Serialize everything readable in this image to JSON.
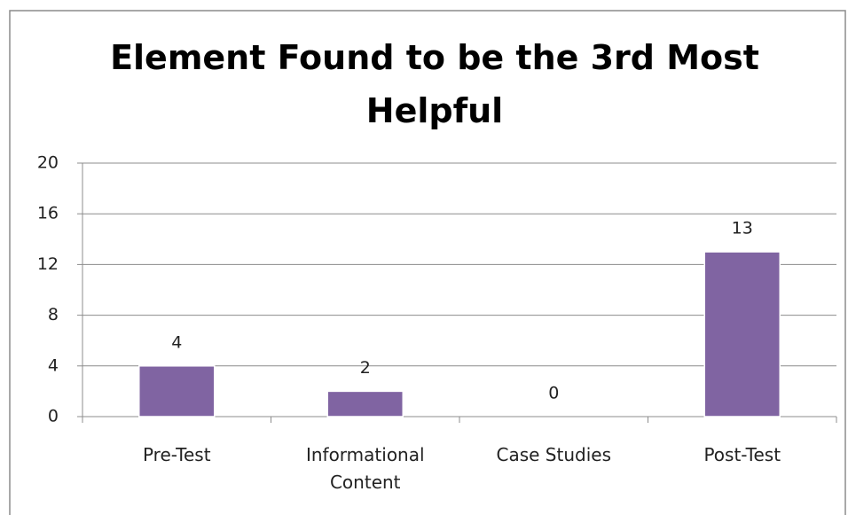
{
  "chart_data": {
    "type": "bar",
    "title": "Element Found to be the 3rd Most Helpful",
    "categories": [
      "Pre-Test",
      "Informational Content",
      "Case Studies",
      "Post-Test"
    ],
    "values": [
      4,
      2,
      0,
      13
    ],
    "color": "#8064a2",
    "ylim": [
      0,
      20
    ],
    "yticks": [
      0,
      4,
      8,
      12,
      16,
      20
    ],
    "grid": true
  }
}
